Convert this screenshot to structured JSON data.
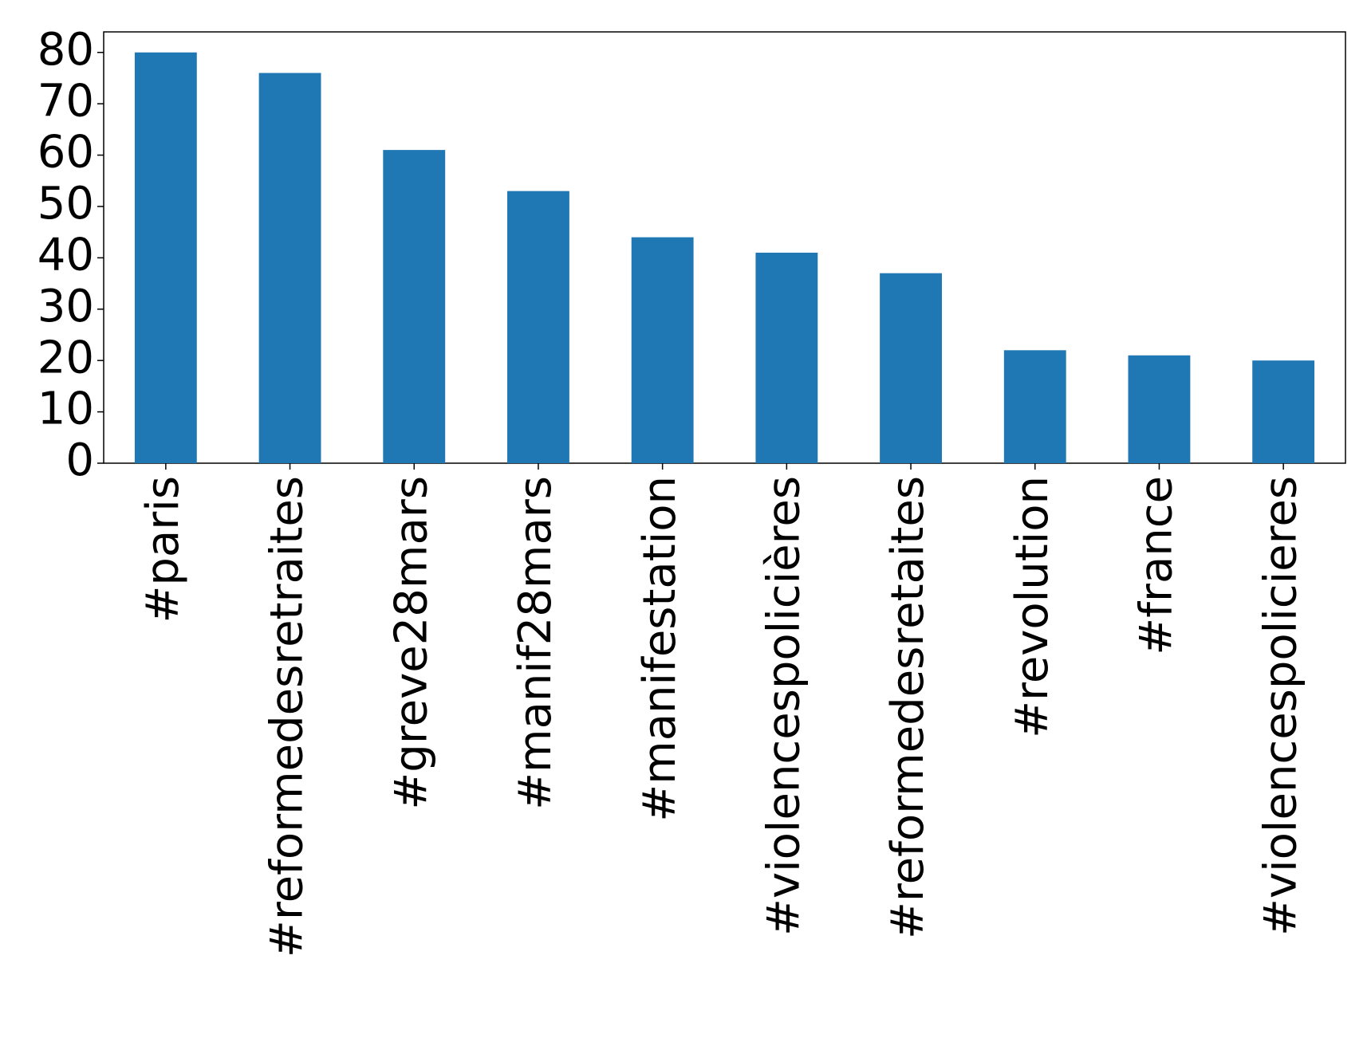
{
  "chart_data": {
    "type": "bar",
    "categories": [
      "#paris",
      "#reformedesretraites",
      "#greve28mars",
      "#manif28mars",
      "#manifestation",
      "#violencespolicières",
      "#reformedesretaites",
      "#revolution",
      "#france",
      "#violencespolicieres"
    ],
    "values": [
      80,
      76,
      61,
      53,
      44,
      41,
      37,
      22,
      21,
      20
    ],
    "color": "#1f77b4",
    "ylim": [
      0,
      84
    ],
    "yticks": [
      0,
      10,
      20,
      30,
      40,
      50,
      60,
      70,
      80
    ],
    "grid": false
  }
}
